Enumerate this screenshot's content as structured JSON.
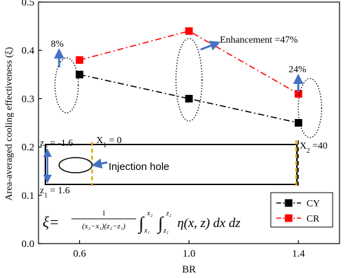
{
  "chart_data": {
    "type": "line",
    "xlabel": "BR",
    "ylabel": "Area-averaged cooling effectiveness (ξ)",
    "xlim": [
      0.45,
      1.55
    ],
    "ylim": [
      0.0,
      0.5
    ],
    "xticks": [
      0.6,
      1.0,
      1.4
    ],
    "yticks": [
      0.0,
      0.1,
      0.2,
      0.3,
      0.4,
      0.5
    ],
    "x": [
      0.6,
      1.0,
      1.4
    ],
    "series": [
      {
        "name": "CY",
        "values": [
          0.35,
          0.3,
          0.25
        ],
        "color": "#000000",
        "marker": "square",
        "line": "dash-dot"
      },
      {
        "name": "CR",
        "values": [
          0.38,
          0.44,
          0.31
        ],
        "color": "#ff0000",
        "marker": "square",
        "line": "dash-dot"
      }
    ],
    "legend": {
      "position": "bottom-right",
      "entries": [
        "CY",
        "CR"
      ]
    },
    "annotations": {
      "pct_06": "8%",
      "pct_10": "Enhancement =47%",
      "pct_14": "24%",
      "injection_hole": "Injection hole",
      "z2": "z",
      "z2_sub": "2",
      "z2_val": " = -1.6",
      "z1": "z",
      "z1_sub": "1",
      "z1_val": " = 1.6",
      "x1": "X",
      "x1_sub": "1",
      "x1_val": " = 0",
      "x2": "X",
      "x2_sub": "2",
      "x2_val": " =40"
    },
    "formula": {
      "lhs": "ξ=",
      "num": "1",
      "den": "(x₂−x₁)(z₂−z₁)",
      "int_outer_upper": "x₂",
      "int_outer_lower": "x₁",
      "int_inner_upper": "z₂",
      "int_inner_lower": "z₁",
      "integrand": "η(x, z) dx dz"
    },
    "colors": {
      "accent_blue": "#4472c4",
      "dashed_yellow": "#e6a800"
    }
  }
}
